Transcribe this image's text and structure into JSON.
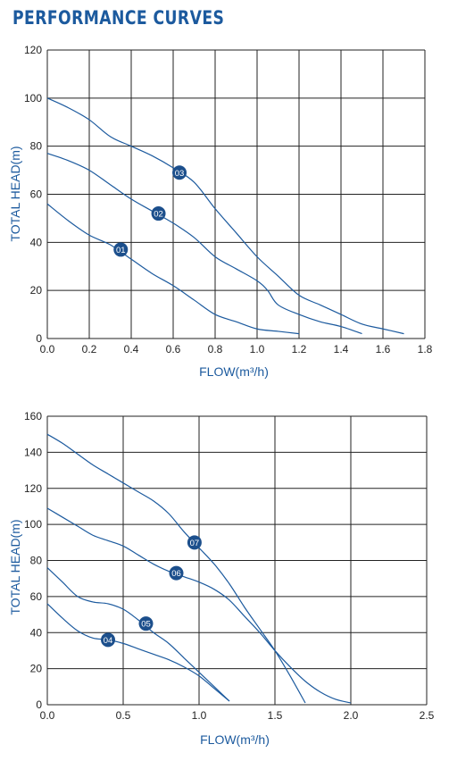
{
  "header": {
    "title": "PERFORMANCE CURVES"
  },
  "chart_data": [
    {
      "type": "line",
      "xlabel": "FLOW(m³/h)",
      "ylabel": "TOTAL HEAD(m)",
      "xlim": [
        0,
        1.8
      ],
      "ylim": [
        0,
        120
      ],
      "x_ticks": [
        "0.0",
        "0.2",
        "0.4",
        "0.6",
        "0.8",
        "1.0",
        "1.2",
        "1.4",
        "1.6",
        "1.8"
      ],
      "y_ticks": [
        "0",
        "20",
        "40",
        "60",
        "80",
        "100",
        "120"
      ],
      "grid": true,
      "series": [
        {
          "name": "01",
          "label_at": [
            0.35,
            37
          ],
          "points": [
            [
              0.0,
              56
            ],
            [
              0.1,
              49
            ],
            [
              0.2,
              43
            ],
            [
              0.3,
              39
            ],
            [
              0.4,
              33
            ],
            [
              0.5,
              27
            ],
            [
              0.6,
              22
            ],
            [
              0.7,
              16
            ],
            [
              0.8,
              10
            ],
            [
              0.9,
              7
            ],
            [
              1.0,
              4
            ],
            [
              1.1,
              3
            ],
            [
              1.2,
              2
            ]
          ]
        },
        {
          "name": "02",
          "label_at": [
            0.53,
            52
          ],
          "points": [
            [
              0.0,
              77
            ],
            [
              0.1,
              74
            ],
            [
              0.2,
              70
            ],
            [
              0.3,
              64
            ],
            [
              0.4,
              58
            ],
            [
              0.5,
              53
            ],
            [
              0.6,
              48
            ],
            [
              0.7,
              42
            ],
            [
              0.8,
              34
            ],
            [
              0.9,
              29
            ],
            [
              1.0,
              24
            ],
            [
              1.05,
              20
            ],
            [
              1.1,
              14
            ],
            [
              1.2,
              10
            ],
            [
              1.3,
              7
            ],
            [
              1.4,
              5
            ],
            [
              1.5,
              2
            ]
          ]
        },
        {
          "name": "03",
          "label_at": [
            0.63,
            69
          ],
          "points": [
            [
              0.0,
              100
            ],
            [
              0.1,
              96
            ],
            [
              0.2,
              91
            ],
            [
              0.3,
              84
            ],
            [
              0.4,
              80
            ],
            [
              0.5,
              76
            ],
            [
              0.6,
              71
            ],
            [
              0.7,
              65
            ],
            [
              0.8,
              54
            ],
            [
              0.9,
              44
            ],
            [
              1.0,
              34
            ],
            [
              1.1,
              26
            ],
            [
              1.2,
              18
            ],
            [
              1.3,
              14
            ],
            [
              1.4,
              10
            ],
            [
              1.5,
              6
            ],
            [
              1.6,
              4
            ],
            [
              1.7,
              2
            ]
          ]
        }
      ]
    },
    {
      "type": "line",
      "xlabel": "FLOW(m³/h)",
      "ylabel": "TOTAL HEAD(m)",
      "xlim": [
        0,
        2.5
      ],
      "ylim": [
        0,
        160
      ],
      "x_ticks": [
        "0.0",
        "0.5",
        "1.0",
        "1.5",
        "2.0",
        "2.5"
      ],
      "y_ticks": [
        "0",
        "20",
        "40",
        "60",
        "80",
        "100",
        "120",
        "140",
        "160"
      ],
      "grid": true,
      "series": [
        {
          "name": "04",
          "label_at": [
            0.4,
            36
          ],
          "points": [
            [
              0.0,
              56
            ],
            [
              0.1,
              48
            ],
            [
              0.2,
              41
            ],
            [
              0.3,
              37
            ],
            [
              0.4,
              36
            ],
            [
              0.5,
              34
            ],
            [
              0.6,
              31
            ],
            [
              0.7,
              28
            ],
            [
              0.8,
              25
            ],
            [
              0.9,
              21
            ],
            [
              1.0,
              16
            ],
            [
              1.1,
              9
            ],
            [
              1.2,
              2
            ]
          ]
        },
        {
          "name": "05",
          "label_at": [
            0.65,
            45
          ],
          "points": [
            [
              0.0,
              76
            ],
            [
              0.1,
              68
            ],
            [
              0.2,
              60
            ],
            [
              0.3,
              57
            ],
            [
              0.4,
              56
            ],
            [
              0.5,
              53
            ],
            [
              0.6,
              47
            ],
            [
              0.7,
              40
            ],
            [
              0.8,
              34
            ],
            [
              0.9,
              26
            ],
            [
              1.0,
              18
            ],
            [
              1.1,
              10
            ],
            [
              1.2,
              2
            ]
          ]
        },
        {
          "name": "06",
          "label_at": [
            0.85,
            73
          ],
          "points": [
            [
              0.0,
              109
            ],
            [
              0.1,
              104
            ],
            [
              0.2,
              99
            ],
            [
              0.3,
              94
            ],
            [
              0.4,
              91
            ],
            [
              0.5,
              88
            ],
            [
              0.6,
              83
            ],
            [
              0.7,
              78
            ],
            [
              0.8,
              74
            ],
            [
              0.9,
              71
            ],
            [
              1.0,
              68
            ],
            [
              1.1,
              64
            ],
            [
              1.2,
              58
            ],
            [
              1.3,
              49
            ],
            [
              1.4,
              40
            ],
            [
              1.5,
              30
            ],
            [
              1.6,
              21
            ],
            [
              1.7,
              13
            ],
            [
              1.8,
              7
            ],
            [
              1.9,
              3
            ],
            [
              2.0,
              1
            ]
          ]
        },
        {
          "name": "07",
          "label_at": [
            0.97,
            90
          ],
          "points": [
            [
              0.0,
              150
            ],
            [
              0.1,
              145
            ],
            [
              0.2,
              139
            ],
            [
              0.3,
              133
            ],
            [
              0.4,
              128
            ],
            [
              0.5,
              123
            ],
            [
              0.6,
              118
            ],
            [
              0.7,
              113
            ],
            [
              0.8,
              106
            ],
            [
              0.9,
              96
            ],
            [
              1.0,
              87
            ],
            [
              1.1,
              78
            ],
            [
              1.2,
              67
            ],
            [
              1.3,
              54
            ],
            [
              1.4,
              42
            ],
            [
              1.5,
              30
            ],
            [
              1.6,
              16
            ],
            [
              1.7,
              1
            ]
          ]
        }
      ]
    }
  ]
}
